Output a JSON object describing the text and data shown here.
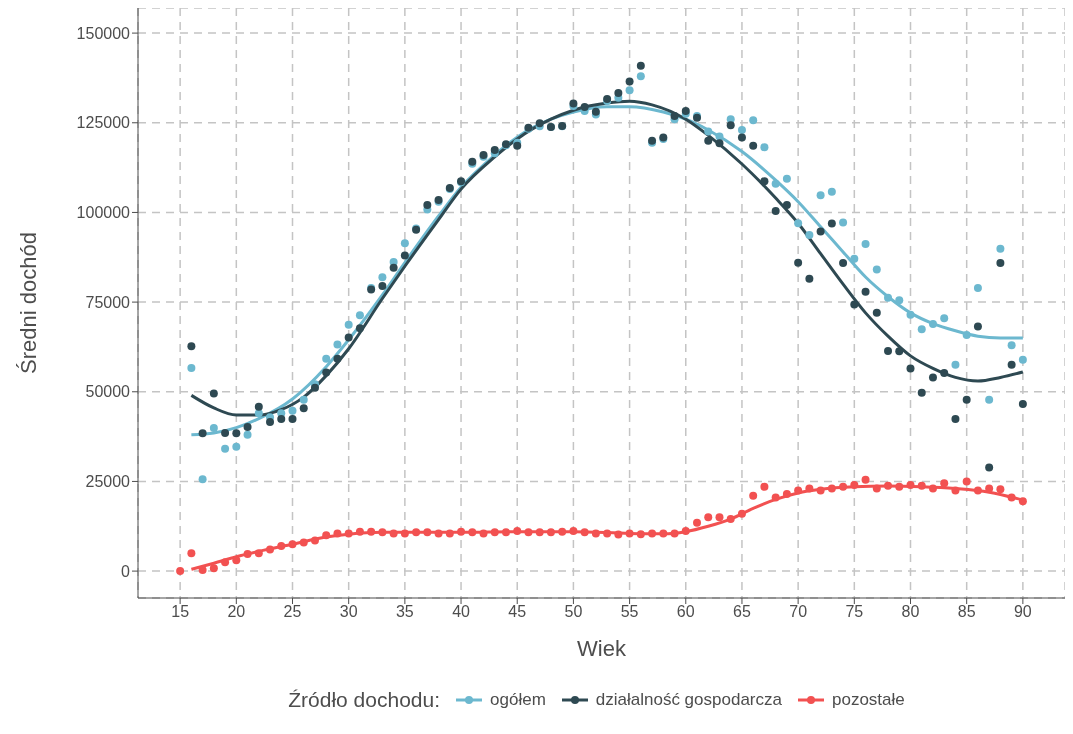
{
  "chart_data": {
    "type": "scatter",
    "xlabel": "Wiek",
    "ylabel": "Średni dochód",
    "legend_title": "Źródło dochodu:",
    "legend": "bottom",
    "grid": true,
    "line_style": "solid",
    "xlim": [
      11.25,
      93.75
    ],
    "ylim": [
      -7500,
      157000
    ],
    "xticks": [
      15,
      20,
      25,
      30,
      35,
      40,
      45,
      50,
      55,
      60,
      65,
      70,
      75,
      80,
      85,
      90
    ],
    "yticks": [
      0,
      25000,
      50000,
      75000,
      100000,
      125000,
      150000
    ],
    "series": [
      {
        "name": "ogółem",
        "marker": "circle",
        "color": "#6cb8cf",
        "x": [
          16,
          17,
          18,
          19,
          20,
          21,
          22,
          23,
          24,
          25,
          26,
          27,
          28,
          29,
          30,
          31,
          32,
          33,
          34,
          35,
          36,
          37,
          38,
          39,
          40,
          41,
          42,
          43,
          44,
          45,
          46,
          47,
          48,
          49,
          50,
          51,
          52,
          53,
          54,
          55,
          56,
          57,
          58,
          59,
          60,
          61,
          62,
          63,
          64,
          65,
          66,
          67,
          68,
          69,
          70,
          71,
          72,
          73,
          74,
          75,
          76,
          77,
          78,
          79,
          80,
          81,
          82,
          83,
          84,
          85,
          86,
          87,
          88,
          89,
          90
        ],
        "values": [
          56600,
          25600,
          39900,
          34100,
          34700,
          38000,
          44000,
          42900,
          44000,
          44700,
          47800,
          52100,
          59200,
          63200,
          68700,
          71300,
          78900,
          81900,
          86200,
          91400,
          95500,
          100800,
          103000,
          106500,
          108400,
          113600,
          115500,
          116500,
          118700,
          119400,
          123300,
          124000,
          123800,
          124000,
          129700,
          128300,
          127300,
          131100,
          132000,
          134100,
          138000,
          119400,
          120500,
          126000,
          127500,
          126900,
          122600,
          121200,
          126000,
          123000,
          125700,
          118200,
          108000,
          109400,
          97000,
          93700,
          104800,
          105800,
          97200,
          87100,
          91200,
          84100,
          76200,
          75500,
          71500,
          67400,
          68900,
          70500,
          57500,
          65800,
          78900,
          47800,
          89900,
          63000,
          58900
        ]
      },
      {
        "name": "działalność gospodarcza",
        "marker": "circle",
        "color": "#2e4952",
        "x": [
          16,
          17,
          18,
          19,
          20,
          21,
          22,
          23,
          24,
          25,
          26,
          27,
          28,
          29,
          30,
          31,
          32,
          33,
          34,
          35,
          36,
          37,
          38,
          39,
          40,
          41,
          42,
          43,
          44,
          45,
          46,
          47,
          48,
          49,
          50,
          51,
          52,
          53,
          54,
          55,
          56,
          57,
          58,
          59,
          60,
          61,
          62,
          63,
          64,
          65,
          66,
          67,
          68,
          69,
          70,
          71,
          72,
          73,
          74,
          75,
          76,
          77,
          78,
          79,
          80,
          81,
          82,
          83,
          84,
          85,
          86,
          87,
          88,
          89,
          90
        ],
        "values": [
          62700,
          38400,
          49500,
          38500,
          38400,
          40200,
          45800,
          41600,
          42400,
          42400,
          45400,
          51100,
          55400,
          59200,
          65100,
          67700,
          78500,
          79500,
          84600,
          88000,
          95200,
          102100,
          103500,
          106800,
          108700,
          114100,
          116000,
          117400,
          119000,
          118600,
          123600,
          124900,
          123800,
          124100,
          130400,
          129400,
          128100,
          131600,
          133300,
          136500,
          140900,
          120000,
          120900,
          126900,
          128300,
          126400,
          120000,
          119300,
          124300,
          120900,
          118600,
          108700,
          100400,
          102100,
          86000,
          81500,
          94700,
          96900,
          85900,
          74300,
          77900,
          72000,
          61400,
          61300,
          56500,
          49700,
          54000,
          55200,
          42400,
          47800,
          68200,
          28900,
          85900,
          57500,
          46600
        ]
      },
      {
        "name": "pozostałe",
        "marker": "circle",
        "color": "#f25151",
        "x": [
          15,
          16,
          17,
          18,
          19,
          20,
          21,
          22,
          23,
          24,
          25,
          26,
          27,
          28,
          29,
          30,
          31,
          32,
          33,
          34,
          35,
          36,
          37,
          38,
          39,
          40,
          41,
          42,
          43,
          44,
          45,
          46,
          47,
          48,
          49,
          50,
          51,
          52,
          53,
          54,
          55,
          56,
          57,
          58,
          59,
          60,
          61,
          62,
          63,
          64,
          65,
          66,
          67,
          68,
          69,
          70,
          71,
          72,
          73,
          74,
          75,
          76,
          77,
          78,
          79,
          80,
          81,
          82,
          83,
          84,
          85,
          86,
          87,
          88,
          89,
          90
        ],
        "values": [
          0,
          5000,
          300,
          800,
          2500,
          3000,
          4800,
          5000,
          6000,
          7000,
          7500,
          8000,
          8500,
          10000,
          10500,
          10500,
          11000,
          11000,
          10800,
          10500,
          10500,
          10800,
          10800,
          10500,
          10500,
          11000,
          10800,
          10500,
          10800,
          10800,
          11200,
          10800,
          10800,
          10800,
          11000,
          11200,
          10800,
          10500,
          10500,
          10200,
          10500,
          10300,
          10500,
          10500,
          10500,
          11200,
          13500,
          15000,
          15000,
          14500,
          16000,
          21000,
          23500,
          20500,
          21500,
          22500,
          23000,
          22500,
          23000,
          23500,
          24000,
          25500,
          23000,
          23800,
          23500,
          24000,
          23800,
          23000,
          24500,
          22500,
          25000,
          22500,
          23000,
          22800,
          20500,
          19500
        ]
      },
      {
        "type": "line",
        "marker": "none",
        "color": "#6cb8cf",
        "x": [
          16,
          18,
          20,
          22,
          25,
          28,
          30,
          33,
          35,
          38,
          40,
          43,
          45,
          48,
          50,
          53,
          55,
          58,
          60,
          62,
          65,
          68,
          70,
          72,
          74,
          76,
          78,
          80,
          82,
          84,
          86,
          88,
          90
        ],
        "values": [
          38000,
          38500,
          40000,
          42500,
          48000,
          57000,
          64500,
          77000,
          86000,
          99000,
          107000,
          116000,
          121000,
          126000,
          128000,
          129500,
          129500,
          128000,
          126000,
          123000,
          117000,
          109000,
          103000,
          96000,
          89000,
          82000,
          76500,
          72000,
          69000,
          67000,
          65500,
          65000,
          65000
        ]
      },
      {
        "type": "line",
        "marker": "none",
        "color": "#2e4952",
        "x": [
          16,
          18,
          20,
          22,
          24,
          26,
          28,
          30,
          33,
          35,
          38,
          40,
          43,
          45,
          48,
          50,
          53,
          55,
          57,
          60,
          62,
          65,
          68,
          70,
          72,
          74,
          76,
          78,
          80,
          82,
          84,
          86,
          88,
          90
        ],
        "values": [
          49000,
          45500,
          43500,
          43500,
          45000,
          48500,
          54500,
          62000,
          76000,
          85000,
          98000,
          106500,
          115500,
          120500,
          126000,
          128500,
          130500,
          131000,
          130000,
          126000,
          121500,
          113500,
          104000,
          97000,
          88500,
          80000,
          72000,
          65500,
          60000,
          56500,
          54000,
          53000,
          54000,
          55500
        ]
      },
      {
        "type": "line",
        "marker": "none",
        "color": "#f25151",
        "x": [
          16,
          18,
          20,
          22,
          25,
          28,
          30,
          33,
          40,
          45,
          50,
          55,
          58,
          60,
          62,
          64,
          66,
          68,
          70,
          72,
          75,
          78,
          81,
          84,
          87,
          90
        ],
        "values": [
          500,
          2200,
          4000,
          5500,
          7500,
          9500,
          10300,
          10800,
          10800,
          11000,
          11000,
          10500,
          10400,
          11000,
          12500,
          14500,
          17500,
          20000,
          21800,
          22800,
          23500,
          23700,
          23500,
          23000,
          22000,
          19800
        ]
      }
    ]
  }
}
